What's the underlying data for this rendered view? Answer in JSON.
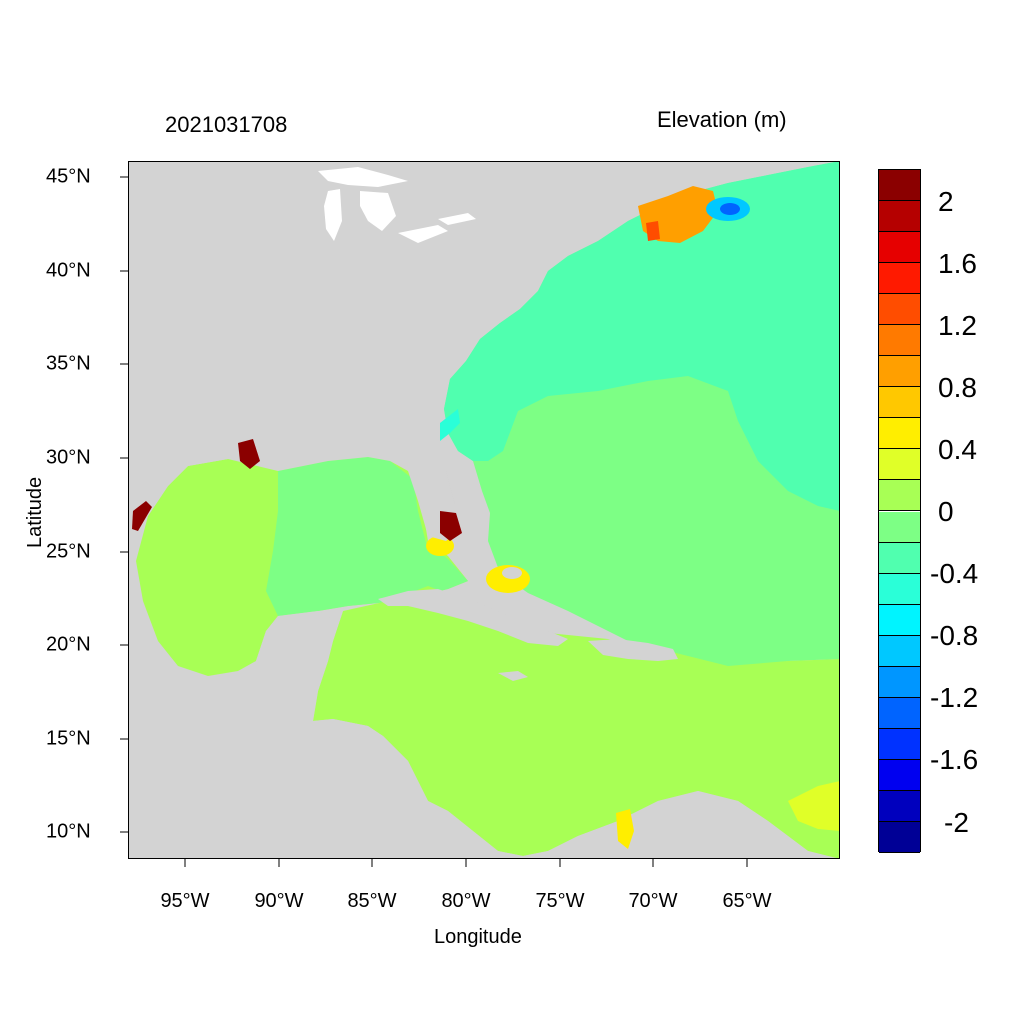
{
  "header": {
    "date_label": "2021031708",
    "variable_label": "Elevation (m)"
  },
  "axes": {
    "xlabel": "Longitude",
    "ylabel": "Latitude",
    "x_ticks": [
      "95°W",
      "90°W",
      "85°W",
      "80°W",
      "75°W",
      "70°W",
      "65°W"
    ],
    "y_ticks": [
      "45°N",
      "40°N",
      "35°N",
      "30°N",
      "25°N",
      "20°N",
      "15°N",
      "10°N"
    ]
  },
  "colorbar": {
    "labels": [
      "2",
      "1.6",
      "1.2",
      "0.8",
      "0.4",
      "0",
      "-0.4",
      "-0.8",
      "-1.2",
      "-1.6",
      "-2"
    ],
    "colors": [
      "#8b0000",
      "#b50000",
      "#e60000",
      "#ff1a00",
      "#ff4d00",
      "#ff7a00",
      "#ff9f00",
      "#ffc800",
      "#ffee00",
      "#e0ff28",
      "#a8ff55",
      "#7dff85",
      "#50ffaf",
      "#2affd8",
      "#00f4ff",
      "#00c8ff",
      "#0096ff",
      "#0064ff",
      "#0032ff",
      "#0000f0",
      "#0000be",
      "#000096"
    ]
  },
  "map_colors": {
    "land": "#d3d3d3",
    "lake": "#ffffff",
    "atlantic": "#7dff85",
    "gulf": "#a8ff55",
    "caribbean": "#a8ff55",
    "negative_shelf": "#50ffaf",
    "gulf_of_maine_high": "#ff9f00",
    "coastal_surge": "#8b0000"
  }
}
